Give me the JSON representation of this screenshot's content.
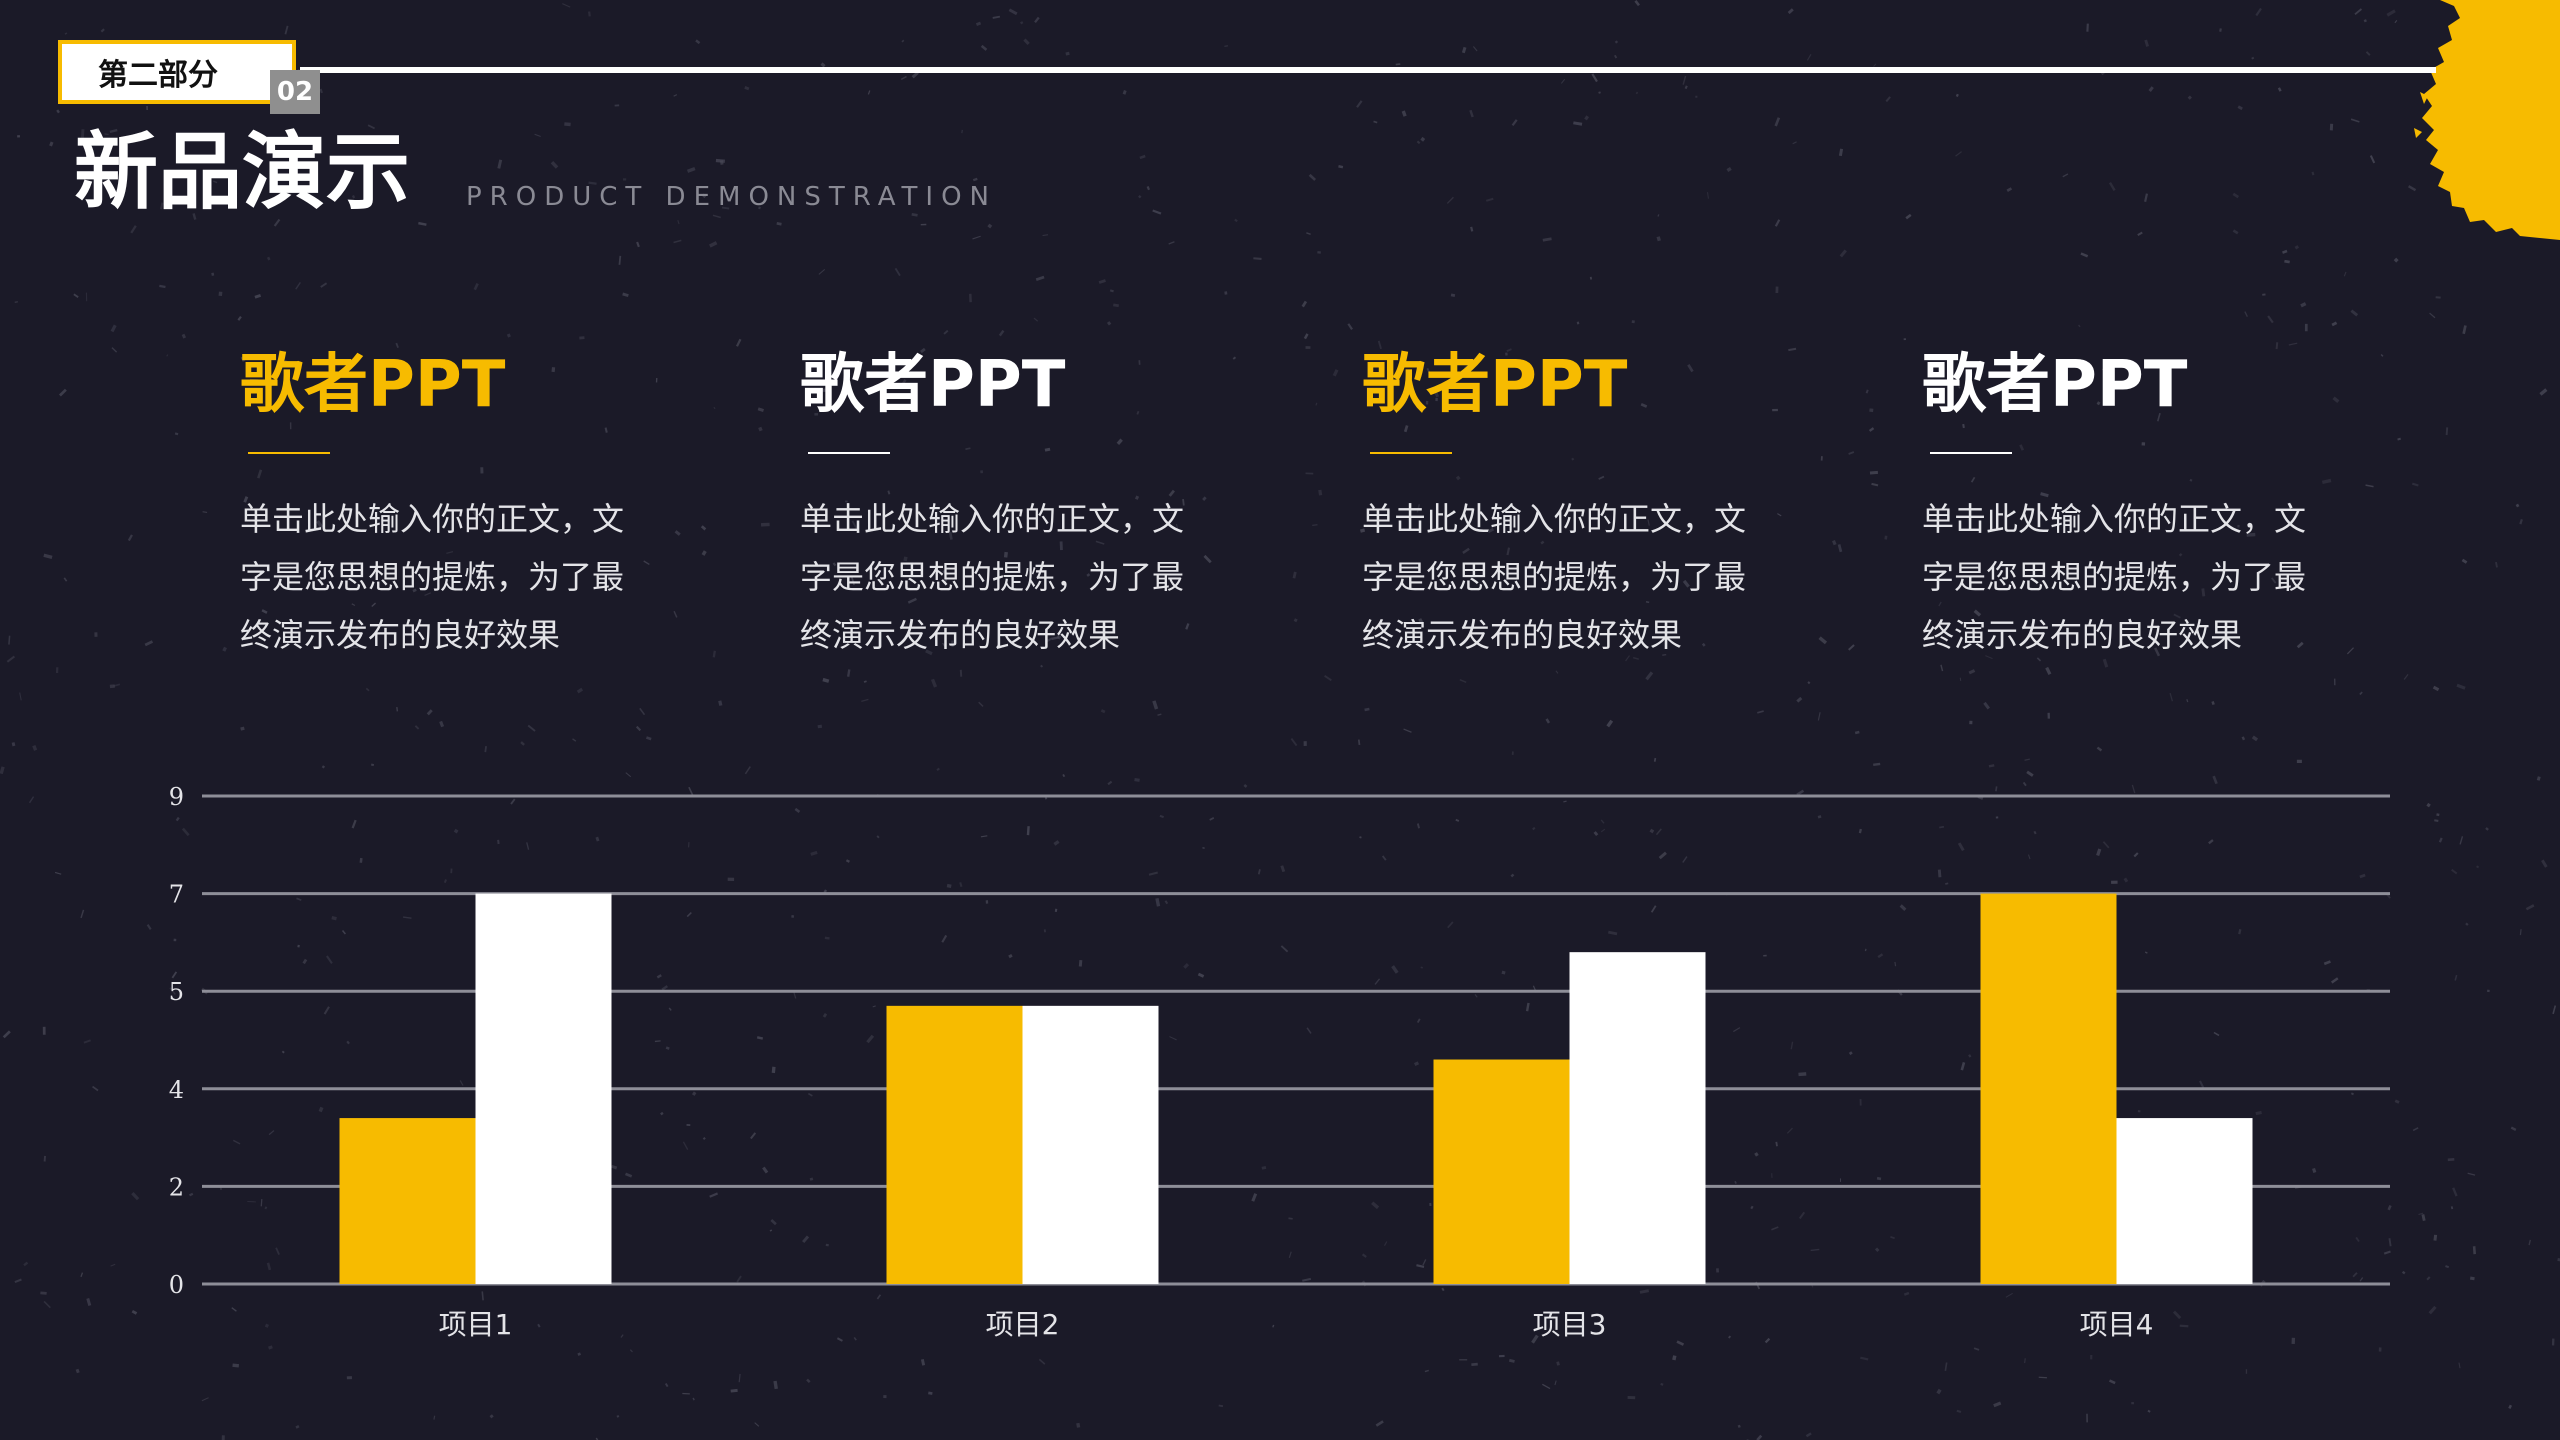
{
  "header": {
    "section_tag": "第二部分",
    "section_number": "02",
    "title": "新品演示",
    "subtitle": "PRODUCT DEMONSTRATION"
  },
  "colors": {
    "accent": "#f7bb00",
    "background": "#1b1a28",
    "white": "#ffffff"
  },
  "columns": [
    {
      "title": "歌者PPT",
      "text": "单击此处输入你的正文，文字是您思想的提炼，为了最终演示发布的良好效果",
      "accent": true
    },
    {
      "title": "歌者PPT",
      "text": "单击此处输入你的正文，文字是您思想的提炼，为了最终演示发布的良好效果",
      "accent": false
    },
    {
      "title": "歌者PPT",
      "text": "单击此处输入你的正文，文字是您思想的提炼，为了最终演示发布的良好效果",
      "accent": true
    },
    {
      "title": "歌者PPT",
      "text": "单击此处输入你的正文，文字是您思想的提炼，为了最终演示发布的良好效果",
      "accent": false
    }
  ],
  "chart_data": {
    "type": "bar",
    "categories": [
      "项目1",
      "项目2",
      "项目3",
      "项目4"
    ],
    "series": [
      {
        "values": [
          3.4,
          5.7,
          4.6,
          8.0
        ],
        "color": "#f7bb00"
      },
      {
        "values": [
          8.0,
          5.7,
          6.8,
          3.4
        ],
        "color": "#ffffff"
      }
    ],
    "y_tick_labels": [
      "0",
      "2",
      "4",
      "5",
      "7",
      "9"
    ],
    "ylim": [
      0,
      10
    ],
    "grid": true,
    "title": "",
    "xlabel": "",
    "ylabel": ""
  }
}
